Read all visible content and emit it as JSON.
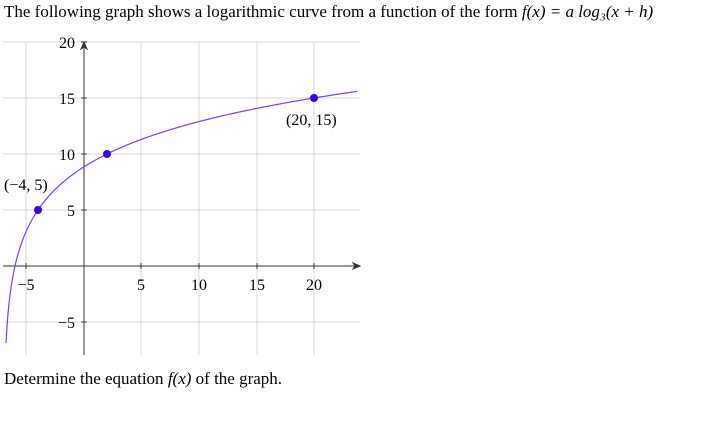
{
  "prompt": {
    "text_before": "The following graph shows a logarithmic curve from a function of the form ",
    "formula": "f(x) = a log₃(x + h)"
  },
  "question": {
    "text_before": "Determine the equation ",
    "fx": "f(x)",
    "text_after": " of the graph."
  },
  "chart_data": {
    "type": "line",
    "title": "",
    "xlabel": "",
    "ylabel": "",
    "xlim": [
      -7,
      24
    ],
    "ylim": [
      -8,
      20
    ],
    "grid": true,
    "x_ticks": [
      -5,
      5,
      10,
      15,
      20
    ],
    "y_ticks": [
      -5,
      5,
      10,
      15,
      20
    ],
    "x_tick_labels": [
      "−5",
      "5",
      "10",
      "15",
      "20"
    ],
    "y_tick_labels": [
      "−5",
      "5",
      "10",
      "15",
      "20"
    ],
    "curve_color": "#7b3ff2",
    "point_color": "#3a00f5",
    "function": "5*log3(x+7)",
    "points": [
      {
        "x": -4,
        "y": 5,
        "label": "(−4, 5)"
      },
      {
        "x": 2,
        "y": 10,
        "label": ""
      },
      {
        "x": 20,
        "y": 15,
        "label": "(20, 15)"
      }
    ]
  }
}
